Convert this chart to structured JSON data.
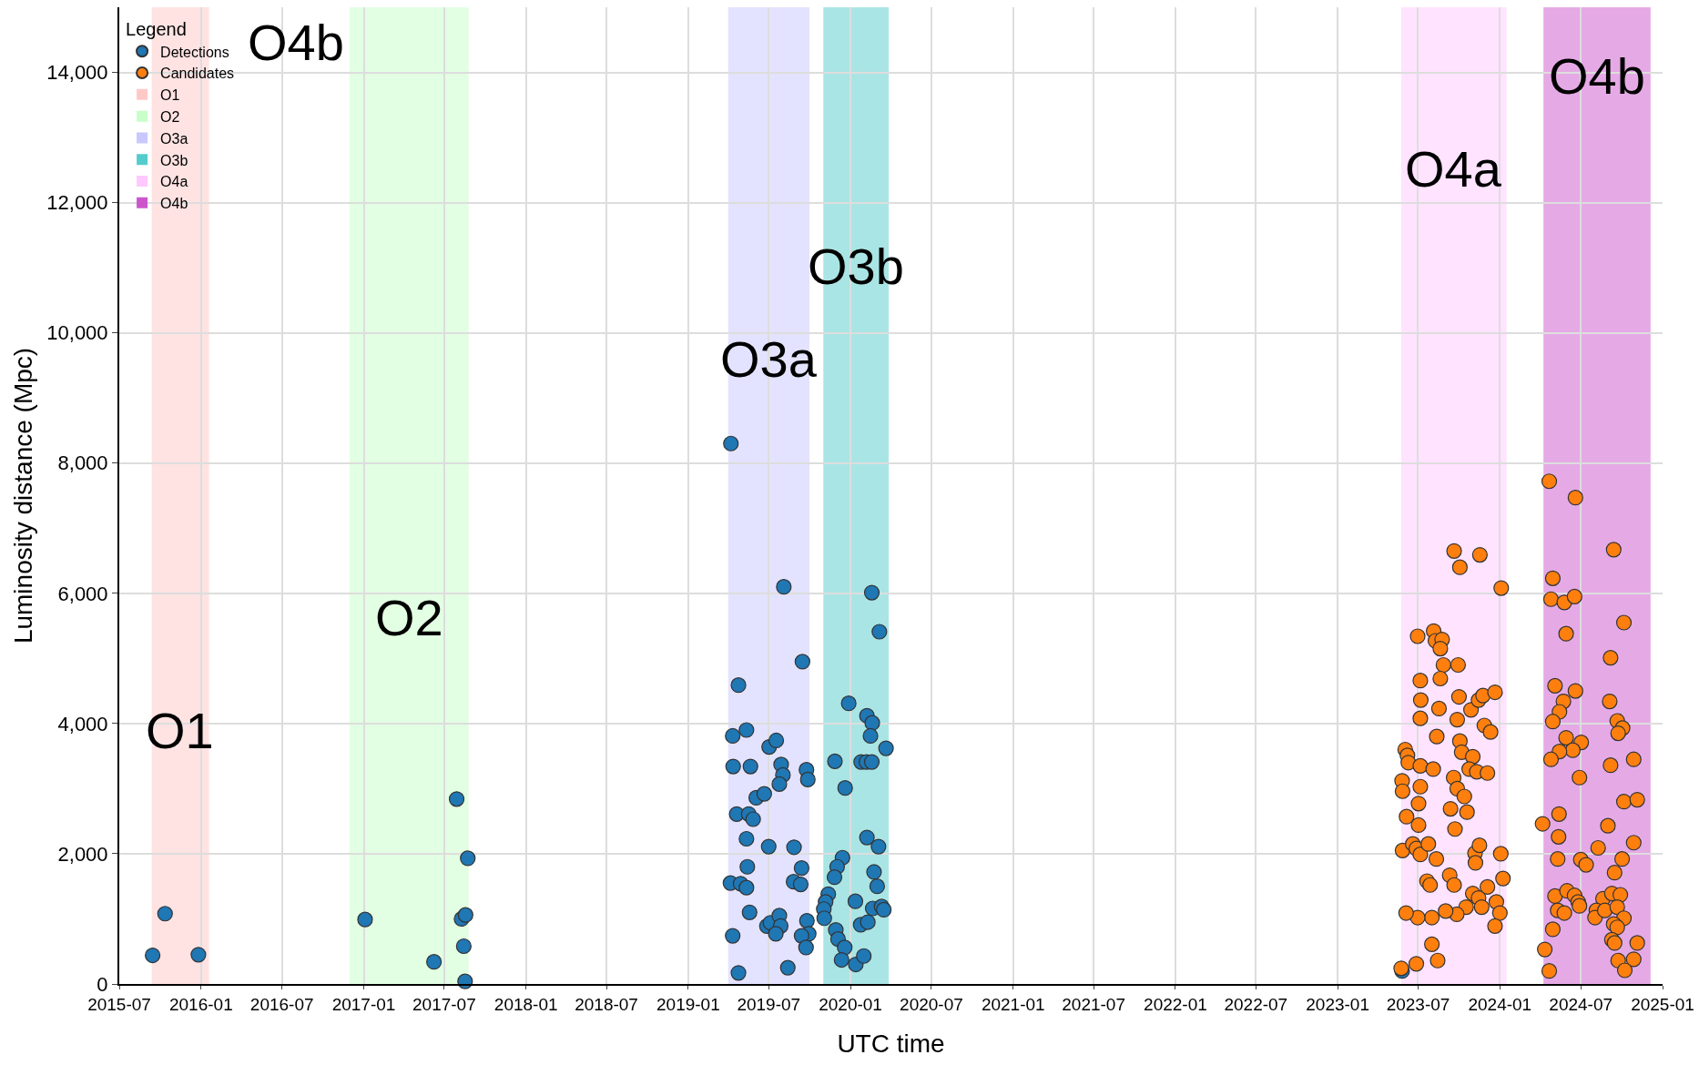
{
  "chart_data": {
    "type": "scatter",
    "xlabel": "UTC time",
    "ylabel": "Luminosity distance (Mpc)",
    "legend_title": "Legend",
    "xlim": [
      "2015-07",
      "2025-01"
    ],
    "xticks": [
      "2015-07",
      "2016-01",
      "2016-07",
      "2017-01",
      "2017-07",
      "2018-01",
      "2018-07",
      "2019-01",
      "2019-07",
      "2020-01",
      "2020-07",
      "2021-01",
      "2021-07",
      "2022-01",
      "2022-07",
      "2023-01",
      "2023-07",
      "2024-01",
      "2024-07",
      "2025-01"
    ],
    "ylim": [
      0,
      15000
    ],
    "yticks": [
      0,
      {
        "value": 2000,
        "label": "2,000"
      },
      {
        "value": 4000,
        "label": "4,000"
      },
      {
        "value": 6000,
        "label": "6,000"
      },
      {
        "value": 8000,
        "label": "8,000"
      },
      {
        "value": 10000,
        "label": "10,000"
      },
      {
        "value": 12000,
        "label": "12,000"
      },
      {
        "value": 14000,
        "label": "14,000"
      }
    ],
    "grid": true,
    "legend": "top left",
    "marker": "circle",
    "series": [
      {
        "name": "Detections",
        "color": "#1f77b4",
        "x": [
          "2015-09-14",
          "2015-10-12",
          "2015-12-26",
          "2017-01-04",
          "2017-06-08",
          "2017-07-29",
          "2017-08-14",
          "2017-08-09",
          "2017-08-18",
          "2017-08-23",
          "2017-08-17",
          "2019-04-07",
          "2019-08-04",
          "2019-09-15",
          "2019-04-24",
          "2019-04-11",
          "2019-05-12",
          "2019-04-12",
          "2019-05-21",
          "2019-07-02",
          "2019-07-18",
          "2019-07-29",
          "2019-08-02",
          "2019-07-25",
          "2019-09-24",
          "2019-09-27",
          "2019-06-03",
          "2019-06-21",
          "2019-04-20",
          "2019-05-17",
          "2019-05-27",
          "2019-05-12",
          "2019-07-01",
          "2019-08-27",
          "2019-05-14",
          "2019-09-13",
          "2019-04-06",
          "2019-04-29",
          "2019-05-12",
          "2019-08-26",
          "2019-09-11",
          "2019-05-19",
          "2019-06-27",
          "2019-07-05",
          "2019-07-25",
          "2019-07-28",
          "2019-07-17",
          "2019-09-25",
          "2019-09-29",
          "2019-09-13",
          "2019-09-23",
          "2019-04-11",
          "2019-04-24",
          "2019-08-13",
          "2020-02-18",
          "2020-03-06",
          "2019-12-28",
          "2020-02-07",
          "2020-02-19",
          "2020-02-15",
          "2020-03-21",
          "2019-11-27",
          "2020-01-25",
          "2020-02-06",
          "2020-02-18",
          "2019-12-20",
          "2020-02-07",
          "2020-03-04",
          "2019-12-14",
          "2019-12-02",
          "2019-11-26",
          "2019-11-12",
          "2019-11-06",
          "2019-11-02",
          "2019-11-03",
          "2020-01-12",
          "2020-02-23",
          "2020-03-01",
          "2020-02-20",
          "2020-03-11",
          "2020-03-16",
          "2020-01-24",
          "2020-02-09",
          "2019-11-29",
          "2019-12-04",
          "2019-12-19",
          "2019-12-12",
          "2020-01-13",
          "2020-01-31",
          "2023-05-26"
        ],
        "values": [
          440,
          1080,
          450,
          990,
          340,
          2840,
          580,
          1000,
          1060,
          1930,
          40,
          8300,
          6100,
          4950,
          4590,
          3810,
          3900,
          3340,
          3340,
          3640,
          3740,
          3370,
          3210,
          3070,
          3290,
          3140,
          2860,
          2920,
          2610,
          2610,
          2530,
          2230,
          2110,
          2100,
          1800,
          1780,
          1550,
          1540,
          1480,
          1570,
          1530,
          1100,
          890,
          940,
          1050,
          890,
          770,
          970,
          770,
          740,
          560,
          740,
          170,
          250,
          6010,
          5410,
          4310,
          4120,
          4010,
          3810,
          3620,
          3420,
          3410,
          3410,
          3410,
          3010,
          2250,
          2110,
          1940,
          1800,
          1640,
          1380,
          1260,
          1150,
          1010,
          1270,
          1720,
          1500,
          1160,
          1190,
          1140,
          910,
          950,
          830,
          690,
          560,
          370,
          300,
          430,
          200
        ]
      },
      {
        "name": "Candidates",
        "color": "#ff7f0e",
        "x": [
          "2023-09-20",
          "2023-11-17",
          "2023-10-03",
          "2024-01-04",
          "2023-06-30",
          "2023-08-05",
          "2023-08-09",
          "2023-08-24",
          "2023-08-20",
          "2023-08-27",
          "2023-09-29",
          "2023-07-06",
          "2023-08-20",
          "2023-07-07",
          "2023-08-17",
          "2023-10-01",
          "2023-10-28",
          "2023-11-14",
          "2023-11-24",
          "2023-12-21",
          "2023-07-06",
          "2023-09-27",
          "2023-11-27",
          "2023-12-11",
          "2023-08-12",
          "2023-10-03",
          "2023-06-02",
          "2023-06-07",
          "2023-06-09",
          "2023-07-06",
          "2023-08-04",
          "2023-10-07",
          "2023-11-01",
          "2023-10-24",
          "2023-11-10",
          "2023-12-04",
          "2023-05-26",
          "2023-05-27",
          "2023-07-06",
          "2023-09-19",
          "2023-09-27",
          "2023-10-13",
          "2023-07-02",
          "2023-09-12",
          "2023-10-19",
          "2023-06-05",
          "2023-07-02",
          "2023-09-22",
          "2023-05-27",
          "2023-06-19",
          "2023-06-27",
          "2023-07-06",
          "2023-07-24",
          "2023-08-11",
          "2023-11-06",
          "2023-11-16",
          "2023-11-07",
          "2024-01-03",
          "2023-07-21",
          "2023-07-28",
          "2023-09-10",
          "2023-09-20",
          "2024-01-08",
          "2023-12-04",
          "2023-11-01",
          "2023-11-14",
          "2023-12-24",
          "2024-01-01",
          "2023-12-21",
          "2023-11-21",
          "2023-10-17",
          "2023-09-26",
          "2023-09-01",
          "2023-08-01",
          "2023-06-30",
          "2023-06-04",
          "2023-08-01",
          "2023-08-14",
          "2023-06-27",
          "2023-05-24",
          "2024-04-21",
          "2024-06-19",
          "2024-09-13",
          "2024-04-29",
          "2024-04-25",
          "2024-05-25",
          "2024-06-17",
          "2024-10-06",
          "2024-05-29",
          "2024-09-06",
          "2024-05-04",
          "2024-06-19",
          "2024-05-23",
          "2024-05-14",
          "2024-04-29",
          "2024-09-04",
          "2024-09-21",
          "2024-10-03",
          "2024-09-23",
          "2024-05-29",
          "2024-07-02",
          "2024-06-13",
          "2024-05-14",
          "2024-04-25",
          "2024-09-06",
          "2024-10-28",
          "2024-06-28",
          "2024-10-06",
          "2024-11-05",
          "2024-04-06",
          "2024-05-13",
          "2024-05-12",
          "2024-08-31",
          "2024-10-28",
          "2024-08-09",
          "2024-05-10",
          "2024-07-01",
          "2024-07-13",
          "2024-10-02",
          "2024-09-15",
          "2024-05-04",
          "2024-05-31",
          "2024-06-17",
          "2024-06-25",
          "2024-06-28",
          "2024-05-10",
          "2024-05-25",
          "2024-08-20",
          "2024-08-05",
          "2024-08-02",
          "2024-08-24",
          "2024-09-09",
          "2024-09-28",
          "2024-09-21",
          "2024-10-06",
          "2024-09-13",
          "2024-09-21",
          "2024-09-09",
          "2024-09-15",
          "2024-04-29",
          "2024-04-11",
          "2024-11-05",
          "2024-09-23",
          "2024-10-28",
          "2024-10-08",
          "2024-04-21"
        ],
        "values": [
          6650,
          6590,
          6400,
          6080,
          5340,
          5420,
          5270,
          5290,
          5150,
          4900,
          4900,
          4660,
          4690,
          4360,
          4230,
          4410,
          4210,
          4360,
          4430,
          4480,
          4080,
          4060,
          3970,
          3870,
          3800,
          3730,
          3600,
          3510,
          3400,
          3350,
          3300,
          3560,
          3490,
          3300,
          3260,
          3240,
          3120,
          2960,
          3030,
          3170,
          3000,
          2880,
          2770,
          2690,
          2640,
          2570,
          2440,
          2380,
          2050,
          2150,
          2080,
          1990,
          2150,
          1920,
          2010,
          2130,
          1860,
          2000,
          1580,
          1520,
          1670,
          1520,
          1620,
          1490,
          1390,
          1320,
          1260,
          1090,
          890,
          1180,
          1180,
          1070,
          1120,
          1020,
          1020,
          1090,
          610,
          360,
          310,
          240,
          7720,
          7470,
          6670,
          6230,
          5910,
          5860,
          5950,
          5550,
          5380,
          5010,
          4580,
          4500,
          4340,
          4180,
          4030,
          4340,
          4040,
          3930,
          3850,
          3780,
          3710,
          3590,
          3570,
          3450,
          3360,
          3450,
          3170,
          2800,
          2830,
          2460,
          2610,
          2260,
          2430,
          2170,
          2090,
          1920,
          1910,
          1830,
          1920,
          1710,
          1350,
          1430,
          1360,
          1260,
          1200,
          1130,
          1090,
          1310,
          1130,
          1020,
          1130,
          1390,
          1370,
          1180,
          1010,
          920,
          870,
          680,
          630,
          840,
          530,
          630,
          360,
          380,
          210,
          200
        ]
      }
    ],
    "bands": [
      {
        "axis": "x",
        "from": "2015-09-12",
        "to": "2016-01-19",
        "label": "O1",
        "color": "#ffc8c8"
      },
      {
        "axis": "x",
        "from": "2016-11-30",
        "to": "2017-08-25",
        "label": "O2",
        "color": "#c8ffc8"
      },
      {
        "axis": "x",
        "from": "2019-04-01",
        "to": "2019-10-01",
        "label": "O3a",
        "color": "#c8c8ff"
      },
      {
        "axis": "x",
        "from": "2019-11-01",
        "to": "2020-03-27",
        "label": "O3b",
        "color": "#55cccc"
      },
      {
        "axis": "x",
        "from": "2023-05-24",
        "to": "2024-01-16",
        "label": "O4a",
        "color": "#ffc8ff"
      },
      {
        "axis": "x",
        "from": "2024-04-08",
        "to": "2024-12-05",
        "label": "O4b",
        "color": "#cc55cc"
      }
    ],
    "annotations": [
      "O4b"
    ]
  }
}
